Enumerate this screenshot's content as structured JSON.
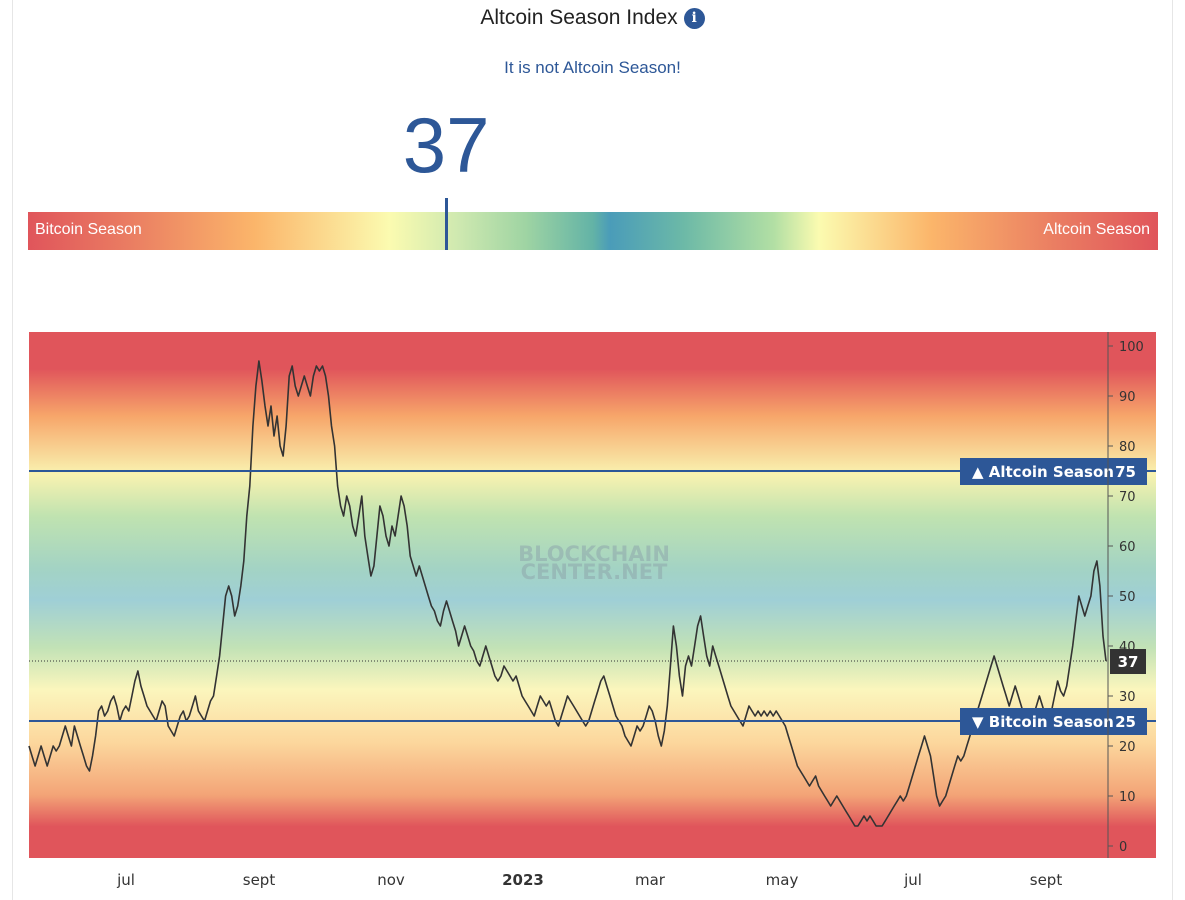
{
  "header": {
    "title": "Altcoin Season Index",
    "info_icon": "info-icon",
    "status_text": "It is not Altcoin Season!"
  },
  "gauge": {
    "value": "37",
    "value_number": 37,
    "left_label": "Bitcoin Season",
    "right_label": "Altcoin Season"
  },
  "colors": {
    "accent": "#2d5797",
    "red": "#e0555b",
    "orange": "#fbb56a",
    "yellow": "#fbfbb0",
    "blue": "#4a9cb9"
  },
  "chart_data": {
    "type": "line",
    "ylim": [
      0,
      100
    ],
    "yticks": [
      0,
      10,
      20,
      30,
      40,
      50,
      60,
      70,
      80,
      90,
      100
    ],
    "x_tick_labels": [
      "jul",
      "sept",
      "nov",
      "2023",
      "mar",
      "may",
      "jul",
      "sept"
    ],
    "watermark": [
      "BLOCKCHAIN",
      "CENTER.NET"
    ],
    "reference_lines": [
      {
        "label": "▲ Altcoin Season",
        "value": 75
      },
      {
        "label": "▼ Bitcoin Season",
        "value": 25
      }
    ],
    "current_value_label": "37",
    "current_value": 37,
    "series": [
      {
        "values": [
          20,
          18,
          16,
          18,
          20,
          18,
          16,
          18,
          20,
          19,
          20,
          22,
          24,
          22,
          20,
          24,
          22,
          20,
          18,
          16,
          15,
          18,
          22,
          27,
          28,
          26,
          27,
          29,
          30,
          28,
          25,
          27,
          28,
          27,
          30,
          33,
          35,
          32,
          30,
          28,
          27,
          26,
          25,
          27,
          29,
          28,
          24,
          23,
          22,
          24,
          26,
          27,
          25,
          26,
          28,
          30,
          27,
          26,
          25,
          27,
          29,
          30,
          34,
          38,
          44,
          50,
          52,
          50,
          46,
          48,
          52,
          57,
          66,
          72,
          84,
          92,
          97,
          93,
          88,
          84,
          88,
          82,
          86,
          80,
          78,
          84,
          94,
          96,
          92,
          90,
          92,
          94,
          92,
          90,
          94,
          96,
          95,
          96,
          94,
          90,
          84,
          80,
          72,
          68,
          66,
          70,
          68,
          64,
          62,
          66,
          70,
          62,
          58,
          54,
          56,
          62,
          68,
          66,
          62,
          60,
          64,
          62,
          66,
          70,
          68,
          64,
          58,
          56,
          54,
          56,
          54,
          52,
          50,
          48,
          47,
          45,
          44,
          47,
          49,
          47,
          45,
          43,
          40,
          42,
          44,
          42,
          40,
          39,
          37,
          36,
          38,
          40,
          38,
          36,
          34,
          33,
          34,
          36,
          35,
          34,
          33,
          34,
          32,
          30,
          29,
          28,
          27,
          26,
          28,
          30,
          29,
          28,
          29,
          27,
          25,
          24,
          26,
          28,
          30,
          29,
          28,
          27,
          26,
          25,
          24,
          25,
          27,
          29,
          31,
          33,
          34,
          32,
          30,
          28,
          26,
          25,
          24,
          22,
          21,
          20,
          22,
          24,
          23,
          24,
          26,
          28,
          27,
          25,
          22,
          20,
          23,
          28,
          36,
          44,
          40,
          34,
          30,
          36,
          38,
          36,
          40,
          44,
          46,
          42,
          38,
          36,
          40,
          38,
          36,
          34,
          32,
          30,
          28,
          27,
          26,
          25,
          24,
          26,
          28,
          27,
          26,
          27,
          26,
          27,
          26,
          27,
          26,
          27,
          26,
          25,
          24,
          22,
          20,
          18,
          16,
          15,
          14,
          13,
          12,
          13,
          14,
          12,
          11,
          10,
          9,
          8,
          9,
          10,
          9,
          8,
          7,
          6,
          5,
          4,
          4,
          5,
          6,
          5,
          6,
          5,
          4,
          4,
          4,
          5,
          6,
          7,
          8,
          9,
          10,
          9,
          10,
          12,
          14,
          16,
          18,
          20,
          22,
          20,
          18,
          14,
          10,
          8,
          9,
          10,
          12,
          14,
          16,
          18,
          17,
          18,
          20,
          22,
          24,
          26,
          28,
          30,
          32,
          34,
          36,
          38,
          36,
          34,
          32,
          30,
          28,
          30,
          32,
          30,
          28,
          26,
          25,
          24,
          26,
          28,
          30,
          28,
          26,
          24,
          27,
          30,
          33,
          31,
          30,
          32,
          36,
          40,
          45,
          50,
          48,
          46,
          48,
          50,
          55,
          57,
          52,
          42,
          37
        ]
      }
    ]
  }
}
